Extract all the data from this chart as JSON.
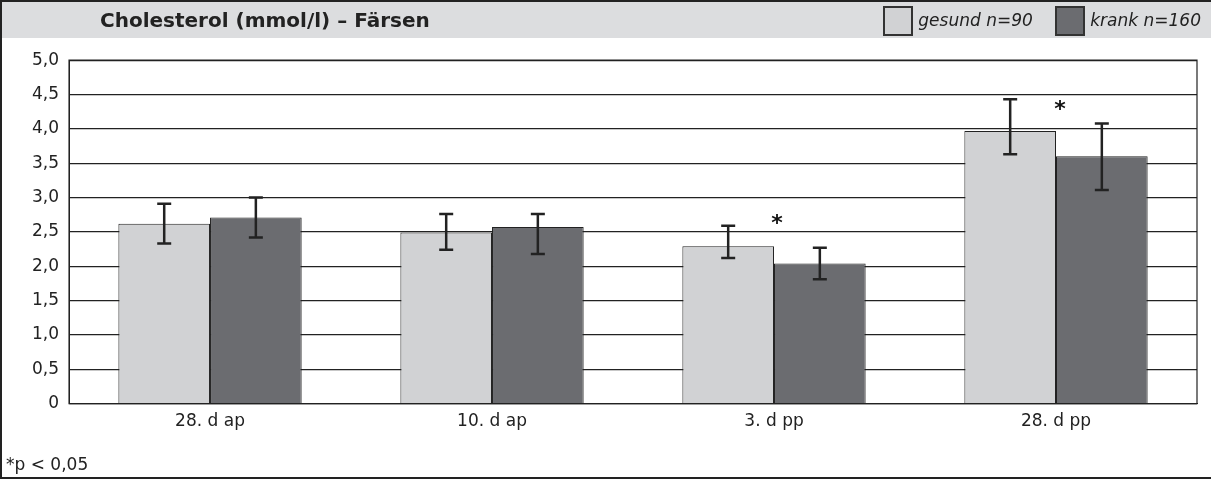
{
  "chart_data": {
    "type": "bar",
    "title": "Cholesterol (mmol/l) – Färsen",
    "categories": [
      "28. d ap",
      "10. d ap",
      "3. d pp",
      "28. d pp"
    ],
    "series": [
      {
        "name": "gesund n=90",
        "color": "#d1d2d4",
        "values": [
          2.62,
          2.49,
          2.29,
          3.97
        ],
        "errors": [
          [
            2.33,
            2.91
          ],
          [
            2.24,
            2.76
          ],
          [
            2.12,
            2.59
          ],
          [
            3.63,
            4.43
          ]
        ]
      },
      {
        "name": "krank n=160",
        "color": "#6b6c70",
        "values": [
          2.71,
          2.57,
          2.04,
          3.6
        ],
        "errors": [
          [
            2.42,
            3.0
          ],
          [
            2.18,
            2.76
          ],
          [
            1.81,
            2.27
          ],
          [
            3.11,
            4.08
          ]
        ]
      }
    ],
    "ylim": [
      0,
      5
    ],
    "yticks": [
      0,
      {
        "value": 0.5,
        "label": "0,5"
      },
      {
        "value": 1,
        "label": "1,0"
      },
      {
        "value": 1.5,
        "label": "1,5"
      },
      {
        "value": 2,
        "label": "2,0"
      },
      {
        "value": 2.5,
        "label": "2,5"
      },
      {
        "value": 3,
        "label": "3,0"
      },
      {
        "value": 3.5,
        "label": "3,5"
      },
      {
        "value": 4,
        "label": "4,0"
      },
      {
        "value": 4.5,
        "label": "4,5"
      },
      {
        "value": 5,
        "label": "5,0"
      }
    ],
    "grid": "y",
    "legend": "top right",
    "annotations": [
      "*",
      "*",
      "*p < 0,05"
    ]
  }
}
